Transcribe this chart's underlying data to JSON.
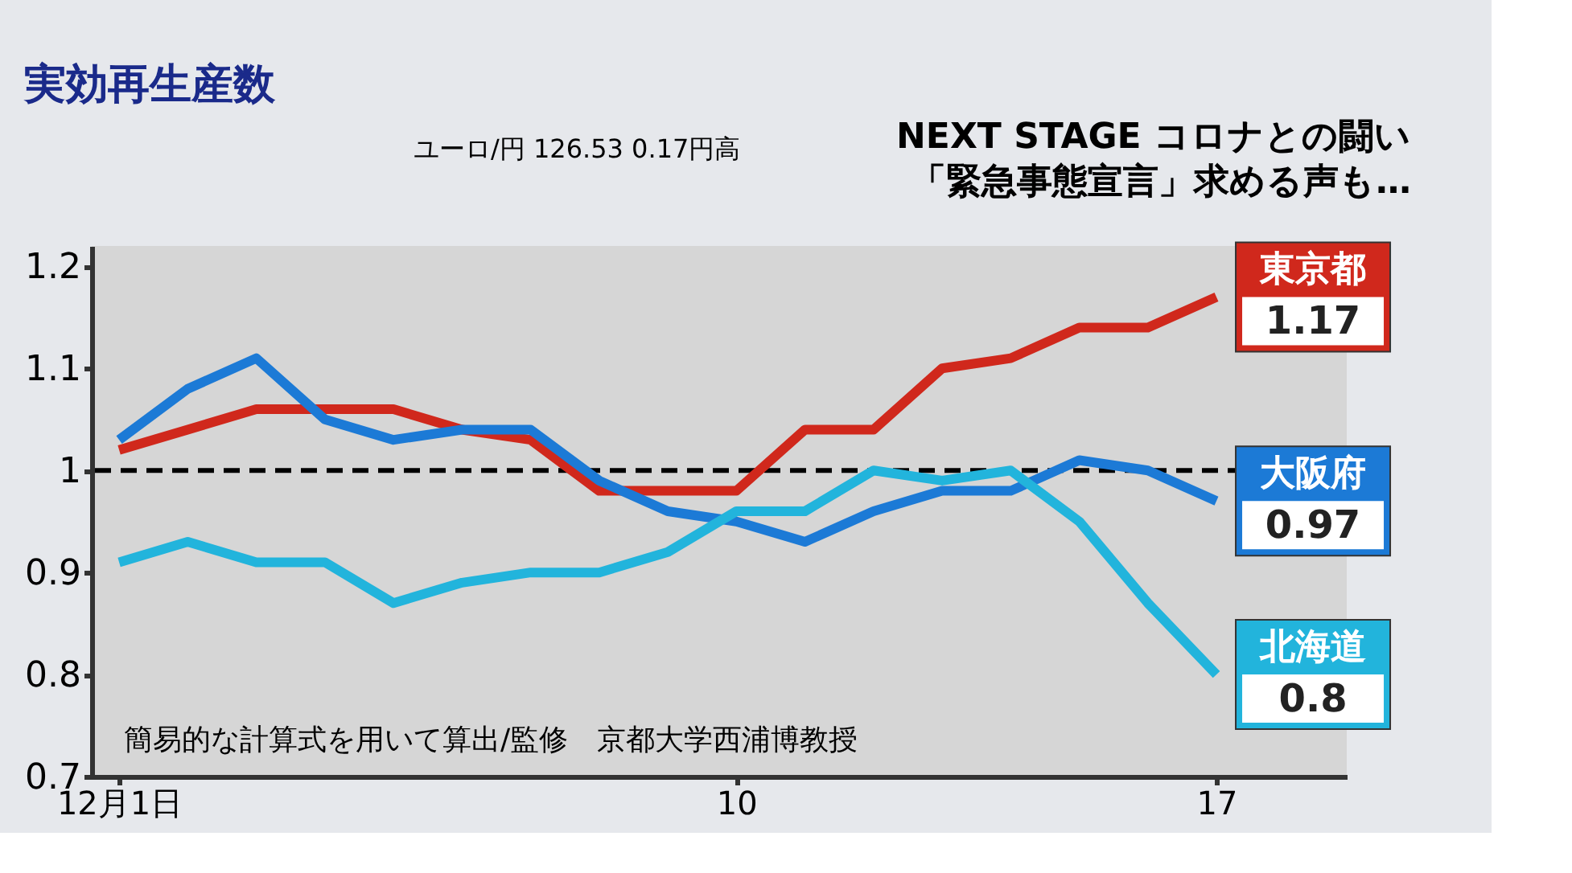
{
  "chart_data": {
    "type": "line",
    "title": "実効再生産数",
    "x": [
      1,
      2,
      3,
      4,
      5,
      6,
      7,
      8,
      9,
      10,
      11,
      12,
      13,
      14,
      15,
      16,
      17
    ],
    "xlim": [
      0.6,
      18.9
    ],
    "xticks": [
      {
        "value": 1,
        "label": "12月1日"
      },
      10,
      17
    ],
    "ylim": [
      0.7,
      1.22
    ],
    "yticks": [
      0.7,
      0.8,
      0.9,
      1,
      1.1,
      1.2
    ],
    "grid": false,
    "legend": false,
    "marker": "none",
    "line_style": "solid",
    "series": [
      {
        "name": "東京都",
        "color": "#d0281c",
        "values": [
          1.02,
          1.04,
          1.06,
          1.06,
          1.06,
          1.04,
          1.03,
          0.98,
          0.98,
          0.98,
          1.04,
          1.04,
          1.1,
          1.11,
          1.14,
          1.14,
          1.17
        ],
        "value_labels": [
          null,
          null,
          null,
          null,
          null,
          null,
          null,
          null,
          null,
          null,
          null,
          null,
          null,
          null,
          null,
          null,
          "1.17"
        ]
      },
      {
        "name": "大阪府",
        "color": "#1c7ad6",
        "values": [
          1.03,
          1.08,
          1.11,
          1.05,
          1.03,
          1.04,
          1.04,
          0.99,
          0.96,
          0.95,
          0.93,
          0.96,
          0.98,
          0.98,
          1.01,
          1.0,
          0.97
        ],
        "value_labels": [
          null,
          null,
          null,
          null,
          null,
          null,
          null,
          null,
          null,
          null,
          null,
          null,
          null,
          null,
          null,
          null,
          "0.97"
        ]
      },
      {
        "name": "北海道",
        "color": "#22b4dc",
        "values": [
          0.91,
          0.93,
          0.91,
          0.91,
          0.87,
          0.89,
          0.9,
          0.9,
          0.92,
          0.96,
          0.96,
          1.0,
          0.99,
          1.0,
          0.95,
          0.87,
          0.8
        ],
        "value_labels": [
          null,
          null,
          null,
          null,
          null,
          null,
          null,
          null,
          null,
          null,
          null,
          null,
          null,
          null,
          null,
          null,
          "0.8"
        ]
      }
    ],
    "ref_lines": [
      {
        "axis": "y",
        "value": 1,
        "color": "#000000",
        "line_style": "dashed"
      }
    ],
    "annotations": [
      "簡易的な計算式を用いて算出/監修　京都大学西浦博教授",
      "NEXT STAGE コロナとの闘い",
      "「緊急事態宣言」求める声も…",
      "ユーロ/円 126.53 0.17円高"
    ]
  }
}
